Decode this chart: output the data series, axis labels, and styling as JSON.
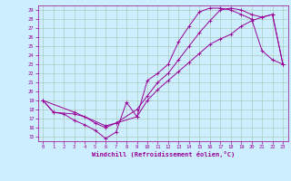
{
  "xlabel": "Windchill (Refroidissement éolien,°C)",
  "bg_color": "#cceeff",
  "line_color": "#990099",
  "grid_color": "#aaccbb",
  "xlim": [
    -0.5,
    23.5
  ],
  "ylim": [
    14.5,
    29.5
  ],
  "xticks": [
    0,
    1,
    2,
    3,
    4,
    5,
    6,
    7,
    8,
    9,
    10,
    11,
    12,
    13,
    14,
    15,
    16,
    17,
    18,
    19,
    20,
    21,
    22,
    23
  ],
  "yticks": [
    15,
    16,
    17,
    18,
    19,
    20,
    21,
    22,
    23,
    24,
    25,
    26,
    27,
    28,
    29
  ],
  "line1_x": [
    0,
    1,
    2,
    3,
    4,
    5,
    6,
    7,
    8,
    9,
    10,
    11,
    12,
    13,
    14,
    15,
    16,
    17,
    18,
    19,
    20,
    21,
    22,
    23
  ],
  "line1_y": [
    19,
    17.7,
    17.5,
    16.8,
    16.3,
    15.7,
    14.8,
    15.5,
    18.8,
    17.2,
    21.2,
    22.0,
    23.0,
    25.5,
    27.2,
    28.8,
    29.2,
    29.2,
    29.0,
    28.5,
    28.0,
    24.5,
    23.5,
    23.0
  ],
  "line2_x": [
    0,
    3,
    6,
    7,
    9,
    10,
    11,
    12,
    13,
    14,
    15,
    16,
    17,
    18,
    19,
    20,
    21,
    22,
    23
  ],
  "line2_y": [
    19,
    17.7,
    16.2,
    16.5,
    17.2,
    19.0,
    20.2,
    21.2,
    22.2,
    23.2,
    24.2,
    25.2,
    25.8,
    26.3,
    27.2,
    27.8,
    28.2,
    28.5,
    23.0
  ],
  "line3_x": [
    0,
    1,
    3,
    4,
    5,
    6,
    7,
    9,
    10,
    11,
    12,
    13,
    14,
    15,
    16,
    17,
    18,
    19,
    20,
    21,
    22,
    23
  ],
  "line3_y": [
    19,
    17.7,
    17.5,
    17.2,
    16.5,
    16.0,
    16.5,
    18.0,
    19.5,
    21.0,
    22.0,
    23.5,
    25.0,
    26.5,
    27.8,
    29.0,
    29.2,
    29.0,
    28.5,
    28.2,
    28.5,
    23.0
  ]
}
